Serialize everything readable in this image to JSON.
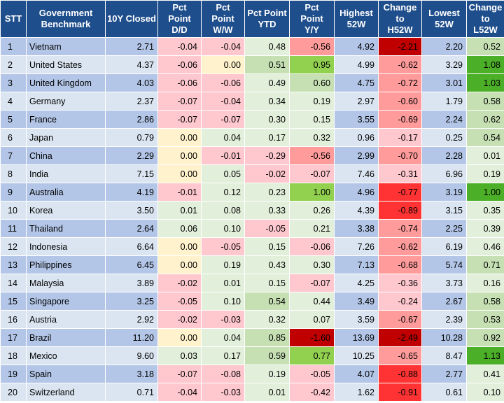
{
  "headers": [
    {
      "l1": "STT",
      "l2": ""
    },
    {
      "l1": "Government",
      "l2": "Benchmark"
    },
    {
      "l1": "10Y Closed",
      "l2": ""
    },
    {
      "l1": "Pct",
      "l2": "Point",
      "l3": "D/D"
    },
    {
      "l1": "Pct",
      "l2": "Point",
      "l3": "W/W"
    },
    {
      "l1": "Pct Point",
      "l2": "YTD"
    },
    {
      "l1": "Pct",
      "l2": "Point",
      "l3": "Y/Y"
    },
    {
      "l1": "Highest",
      "l2": "52W"
    },
    {
      "l1": "Change",
      "l2": "to",
      "l3": "H52W"
    },
    {
      "l1": "Lowest",
      "l2": "52W"
    },
    {
      "l1": "Change",
      "l2": "to",
      "l3": "L52W"
    }
  ],
  "rows": [
    {
      "stt": "1",
      "name": "Vietnam",
      "closed": "2.71",
      "dd": "-0.04",
      "ww": "-0.04",
      "ytd": "0.48",
      "yy": "-0.56",
      "h52": "4.92",
      "ch": "-2.21",
      "l52": "2.20",
      "cl": "0.52"
    },
    {
      "stt": "2",
      "name": "United States",
      "closed": "4.37",
      "dd": "-0.06",
      "ww": "0.00",
      "ytd": "0.51",
      "yy": "0.95",
      "h52": "4.99",
      "ch": "-0.62",
      "l52": "3.29",
      "cl": "1.08"
    },
    {
      "stt": "3",
      "name": "United Kingdom",
      "closed": "4.03",
      "dd": "-0.06",
      "ww": "-0.06",
      "ytd": "0.49",
      "yy": "0.60",
      "h52": "4.75",
      "ch": "-0.72",
      "l52": "3.01",
      "cl": "1.03"
    },
    {
      "stt": "4",
      "name": "Germany",
      "closed": "2.37",
      "dd": "-0.07",
      "ww": "-0.04",
      "ytd": "0.34",
      "yy": "0.19",
      "h52": "2.97",
      "ch": "-0.60",
      "l52": "1.79",
      "cl": "0.58"
    },
    {
      "stt": "5",
      "name": "France",
      "closed": "2.86",
      "dd": "-0.07",
      "ww": "-0.07",
      "ytd": "0.30",
      "yy": "0.15",
      "h52": "3.55",
      "ch": "-0.69",
      "l52": "2.24",
      "cl": "0.62"
    },
    {
      "stt": "6",
      "name": "Japan",
      "closed": "0.79",
      "dd": "0.00",
      "ww": "0.04",
      "ytd": "0.17",
      "yy": "0.32",
      "h52": "0.96",
      "ch": "-0.17",
      "l52": "0.25",
      "cl": "0.54"
    },
    {
      "stt": "7",
      "name": "China",
      "closed": "2.29",
      "dd": "0.00",
      "ww": "-0.01",
      "ytd": "-0.29",
      "yy": "-0.56",
      "h52": "2.99",
      "ch": "-0.70",
      "l52": "2.28",
      "cl": "0.01"
    },
    {
      "stt": "8",
      "name": "India",
      "closed": "7.15",
      "dd": "0.00",
      "ww": "0.05",
      "ytd": "-0.02",
      "yy": "-0.07",
      "h52": "7.46",
      "ch": "-0.31",
      "l52": "6.96",
      "cl": "0.19"
    },
    {
      "stt": "9",
      "name": "Australia",
      "closed": "4.19",
      "dd": "-0.01",
      "ww": "0.12",
      "ytd": "0.23",
      "yy": "1.00",
      "h52": "4.96",
      "ch": "-0.77",
      "l52": "3.19",
      "cl": "1.00"
    },
    {
      "stt": "10",
      "name": "Korea",
      "closed": "3.50",
      "dd": "0.01",
      "ww": "0.08",
      "ytd": "0.33",
      "yy": "0.26",
      "h52": "4.39",
      "ch": "-0.89",
      "l52": "3.15",
      "cl": "0.35"
    },
    {
      "stt": "11",
      "name": "Thailand",
      "closed": "2.64",
      "dd": "0.06",
      "ww": "0.10",
      "ytd": "-0.05",
      "yy": "0.21",
      "h52": "3.38",
      "ch": "-0.74",
      "l52": "2.25",
      "cl": "0.39"
    },
    {
      "stt": "12",
      "name": "Indonesia",
      "closed": "6.64",
      "dd": "0.00",
      "ww": "-0.05",
      "ytd": "0.15",
      "yy": "-0.06",
      "h52": "7.26",
      "ch": "-0.62",
      "l52": "6.19",
      "cl": "0.46"
    },
    {
      "stt": "13",
      "name": "Philippines",
      "closed": "6.45",
      "dd": "0.00",
      "ww": "0.19",
      "ytd": "0.43",
      "yy": "0.30",
      "h52": "7.13",
      "ch": "-0.68",
      "l52": "5.74",
      "cl": "0.71"
    },
    {
      "stt": "14",
      "name": "Malaysia",
      "closed": "3.89",
      "dd": "-0.02",
      "ww": "0.01",
      "ytd": "0.15",
      "yy": "-0.07",
      "h52": "4.25",
      "ch": "-0.36",
      "l52": "3.73",
      "cl": "0.16"
    },
    {
      "stt": "15",
      "name": "Singapore",
      "closed": "3.25",
      "dd": "-0.05",
      "ww": "0.10",
      "ytd": "0.54",
      "yy": "0.44",
      "h52": "3.49",
      "ch": "-0.24",
      "l52": "2.67",
      "cl": "0.58"
    },
    {
      "stt": "16",
      "name": "Austria",
      "closed": "2.92",
      "dd": "-0.02",
      "ww": "-0.03",
      "ytd": "0.32",
      "yy": "0.07",
      "h52": "3.59",
      "ch": "-0.67",
      "l52": "2.39",
      "cl": "0.53"
    },
    {
      "stt": "17",
      "name": "Brazil",
      "closed": "11.20",
      "dd": "0.00",
      "ww": "0.04",
      "ytd": "0.85",
      "yy": "-1.60",
      "h52": "13.69",
      "ch": "-2.49",
      "l52": "10.28",
      "cl": "0.92"
    },
    {
      "stt": "18",
      "name": "Mexico",
      "closed": "9.60",
      "dd": "0.03",
      "ww": "0.17",
      "ytd": "0.59",
      "yy": "0.77",
      "h52": "10.25",
      "ch": "-0.65",
      "l52": "8.47",
      "cl": "1.13"
    },
    {
      "stt": "19",
      "name": "Spain",
      "closed": "3.18",
      "dd": "-0.07",
      "ww": "-0.08",
      "ytd": "0.19",
      "yy": "-0.05",
      "h52": "4.07",
      "ch": "-0.88",
      "l52": "2.77",
      "cl": "0.41"
    },
    {
      "stt": "20",
      "name": "Switzerland",
      "closed": "0.71",
      "dd": "-0.04",
      "ww": "-0.03",
      "ytd": "0.01",
      "yy": "-0.42",
      "h52": "1.62",
      "ch": "-0.91",
      "l52": "0.61",
      "cl": "0.10"
    }
  ],
  "colors": {
    "header_bg": "#1f4e8c",
    "row_odd": "#b3c6e7",
    "row_even": "#dbe5f1",
    "neutral_yellow": "#fff2cc",
    "neg_light": "#ffc7ce",
    "neg_mid": "#ff9b9b",
    "neg_strong": "#ff3333",
    "neg_dark": "#c00000",
    "pos_light": "#e2efda",
    "pos_mid": "#c6e0b4",
    "pos_strong": "#92d050",
    "pos_dark": "#4caf28"
  }
}
